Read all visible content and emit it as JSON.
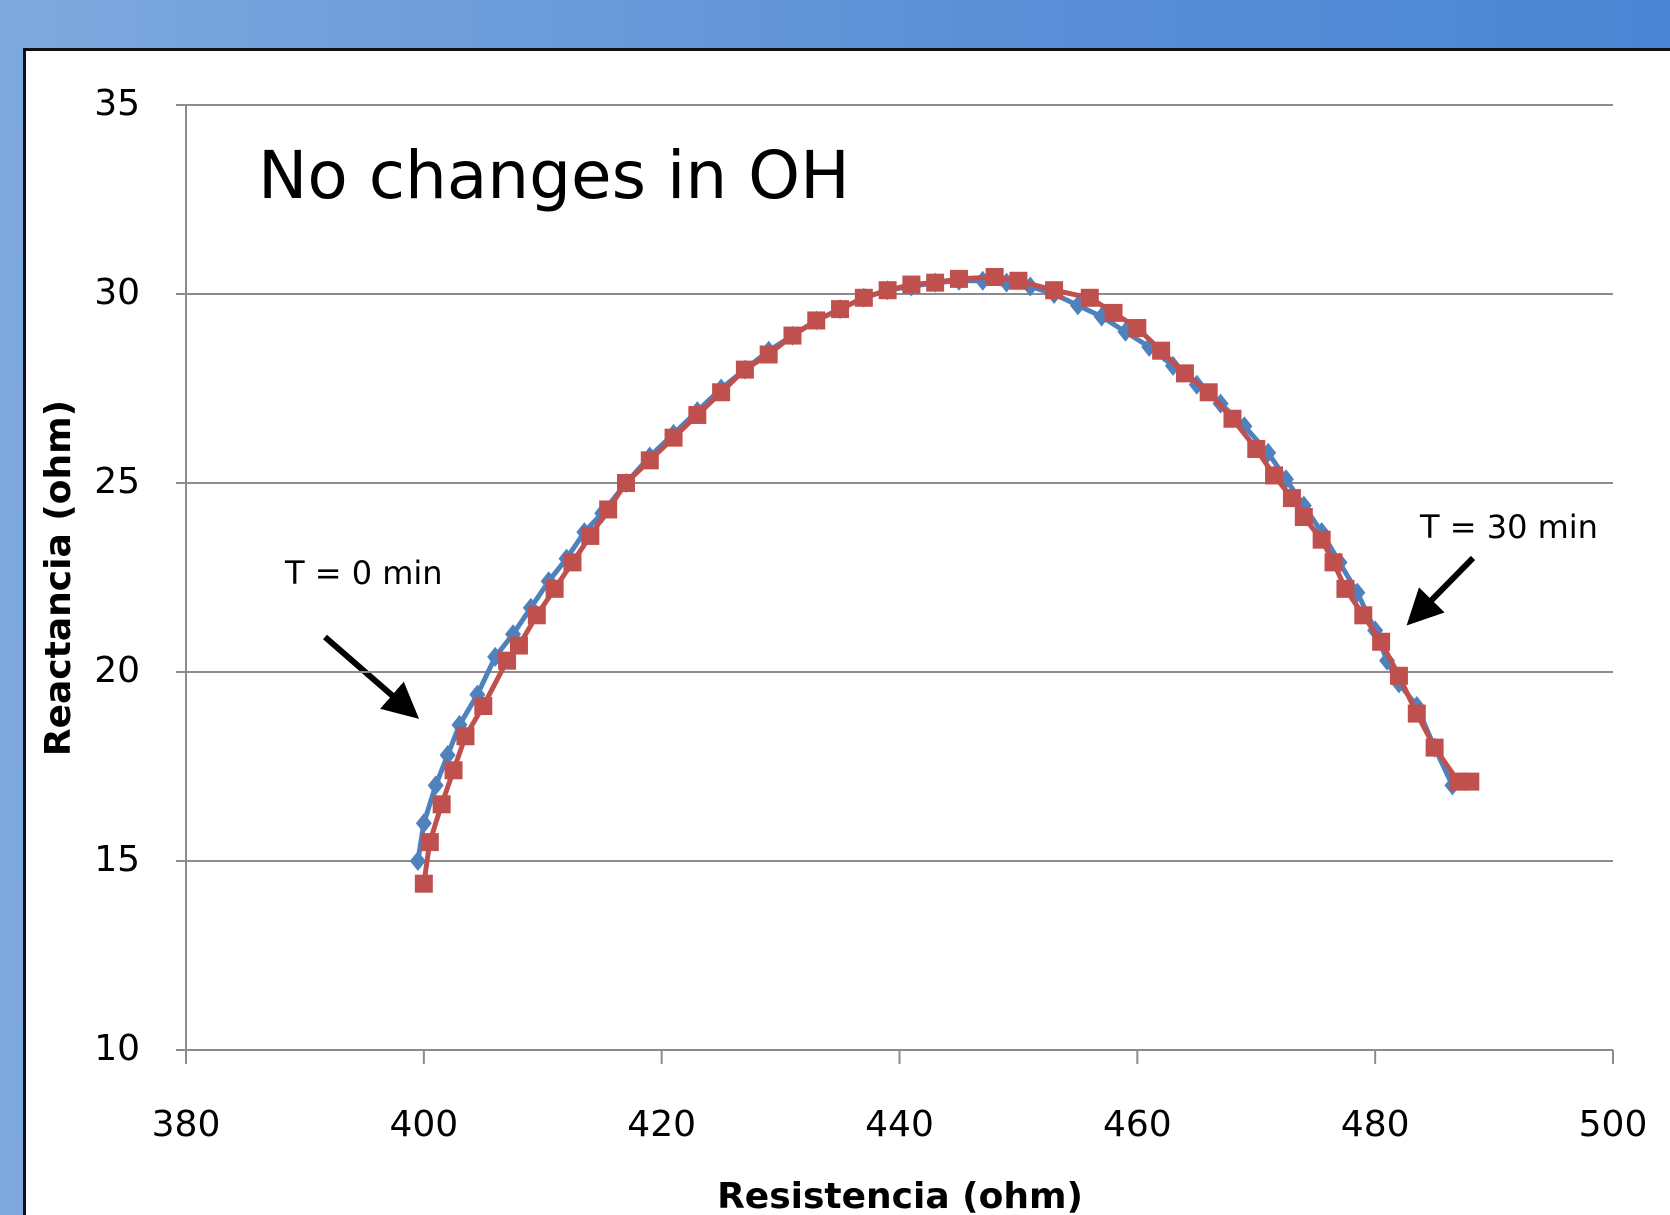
{
  "chart_data": {
    "type": "scatter-line",
    "title": "No changes in OH",
    "x_label": "Resistencia (ohm)",
    "y_label": "Reactancia (ohm)",
    "annotations": [
      "T = 0 min",
      "T = 30 min"
    ],
    "xlim": [
      380,
      500
    ],
    "xticks": [
      380,
      400,
      420,
      440,
      460,
      480,
      500
    ],
    "ylim": [
      10,
      35
    ],
    "yticks": [
      10,
      15,
      20,
      25,
      30,
      35
    ],
    "grid": true,
    "series": [
      {
        "color": "#4f81bd",
        "marker": "diamond",
        "x": [
          399.5,
          400,
          401,
          402,
          403,
          404.5,
          406,
          407.5,
          409,
          410.5,
          412,
          413.5,
          415,
          417,
          419,
          421,
          423,
          425,
          427,
          429,
          431,
          433,
          435,
          437,
          439,
          441,
          443,
          445,
          447,
          449,
          451,
          453,
          455,
          457,
          459,
          461,
          463,
          465,
          467,
          469,
          471,
          472.5,
          474,
          475.5,
          477,
          478.5,
          480,
          481,
          482,
          483.5,
          485,
          486.5
        ],
        "values": [
          15,
          16,
          17,
          17.8,
          18.6,
          19.4,
          20.4,
          21,
          21.7,
          22.4,
          23,
          23.7,
          24.2,
          25,
          25.7,
          26.3,
          26.9,
          27.5,
          28,
          28.5,
          28.9,
          29.3,
          29.6,
          29.9,
          30.1,
          30.2,
          30.3,
          30.35,
          30.35,
          30.3,
          30.2,
          30,
          29.7,
          29.4,
          29,
          28.6,
          28.1,
          27.6,
          27.1,
          26.5,
          25.8,
          25.1,
          24.4,
          23.7,
          22.9,
          22.1,
          21.1,
          20.3,
          19.7,
          19.1,
          18,
          17
        ]
      },
      {
        "color": "#c0504d",
        "marker": "square",
        "x": [
          400,
          400.5,
          401.5,
          402.5,
          403.5,
          405,
          407,
          408,
          409.5,
          411,
          412.5,
          414,
          415.5,
          417,
          419,
          421,
          423,
          425,
          427,
          429,
          431,
          433,
          435,
          437,
          439,
          441,
          443,
          445,
          448,
          450,
          453,
          456,
          458,
          460,
          462,
          464,
          466,
          468,
          470,
          471.5,
          473,
          474,
          475.5,
          476.5,
          477.5,
          479,
          480.5,
          482,
          483.5,
          485,
          487,
          488
        ],
        "values": [
          14.4,
          15.5,
          16.5,
          17.4,
          18.3,
          19.1,
          20.3,
          20.7,
          21.5,
          22.2,
          22.9,
          23.6,
          24.3,
          25,
          25.6,
          26.2,
          26.8,
          27.4,
          28,
          28.4,
          28.9,
          29.3,
          29.6,
          29.9,
          30.1,
          30.25,
          30.3,
          30.4,
          30.45,
          30.35,
          30.1,
          29.9,
          29.5,
          29.1,
          28.5,
          27.9,
          27.4,
          26.7,
          25.9,
          25.2,
          24.6,
          24.1,
          23.5,
          22.9,
          22.2,
          21.5,
          20.8,
          19.9,
          18.9,
          18,
          17.1,
          17.1
        ]
      }
    ]
  }
}
